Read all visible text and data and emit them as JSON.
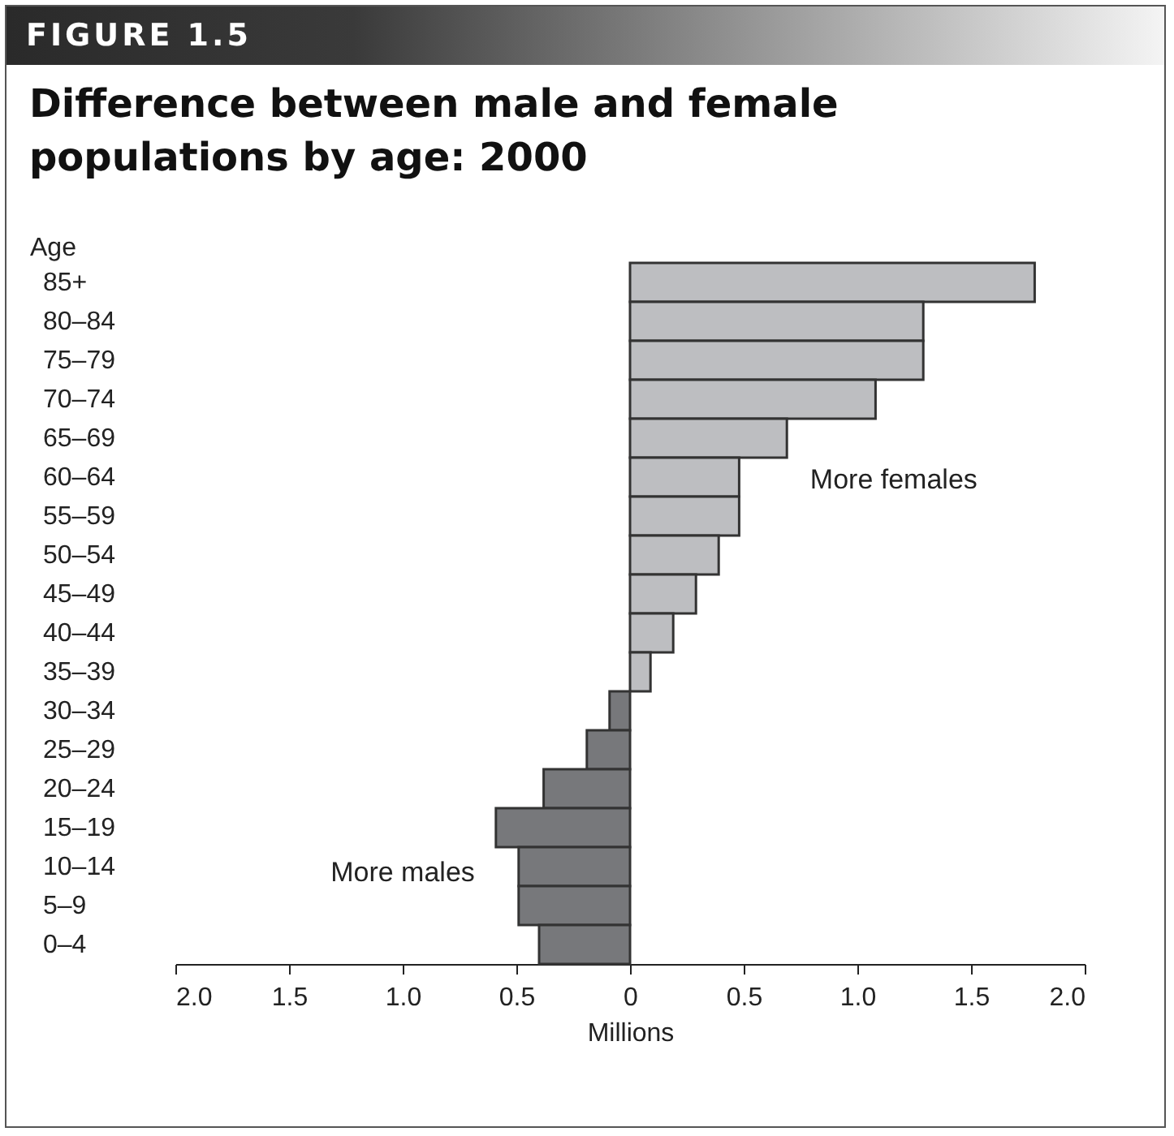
{
  "chart_data": {
    "type": "bar",
    "orientation": "horizontal",
    "title": "Difference between male and female populations by age: 2000",
    "xlabel": "Millions",
    "ylabel": "Age",
    "categories": [
      "85+",
      "80–84",
      "75–79",
      "70–74",
      "65–69",
      "60–64",
      "55–59",
      "50–54",
      "45–49",
      "40–44",
      "35–39",
      "30–34",
      "25–29",
      "20–24",
      "15–19",
      "10–14",
      "5–9",
      "0–4"
    ],
    "values": [
      1.78,
      1.29,
      1.29,
      1.08,
      0.69,
      0.48,
      0.48,
      0.39,
      0.29,
      0.19,
      0.09,
      -0.09,
      -0.19,
      -0.38,
      -0.59,
      -0.49,
      -0.49,
      -0.4
    ],
    "colors": [
      "#bdbec1",
      "#bdbec1",
      "#bdbec1",
      "#bdbec1",
      "#bdbec1",
      "#bdbec1",
      "#bdbec1",
      "#bdbec1",
      "#bdbec1",
      "#bdbec1",
      "#bdbec1",
      "#77787b",
      "#77787b",
      "#77787b",
      "#77787b",
      "#77787b",
      "#77787b",
      "#77787b"
    ],
    "xlim": [
      -2,
      2
    ],
    "xticks": [
      {
        "value": -2,
        "label": "2.0"
      },
      {
        "value": -1.5,
        "label": "1.5"
      },
      {
        "value": -1,
        "label": "1.0"
      },
      {
        "value": -0.5,
        "label": "0.5"
      },
      0,
      0.5,
      {
        "value": 1,
        "label": "1.0"
      },
      1.5,
      {
        "value": 2,
        "label": "2.0"
      }
    ],
    "grid": false,
    "annotations": [
      "FIGURE 1.5",
      "More females",
      "More males"
    ]
  }
}
